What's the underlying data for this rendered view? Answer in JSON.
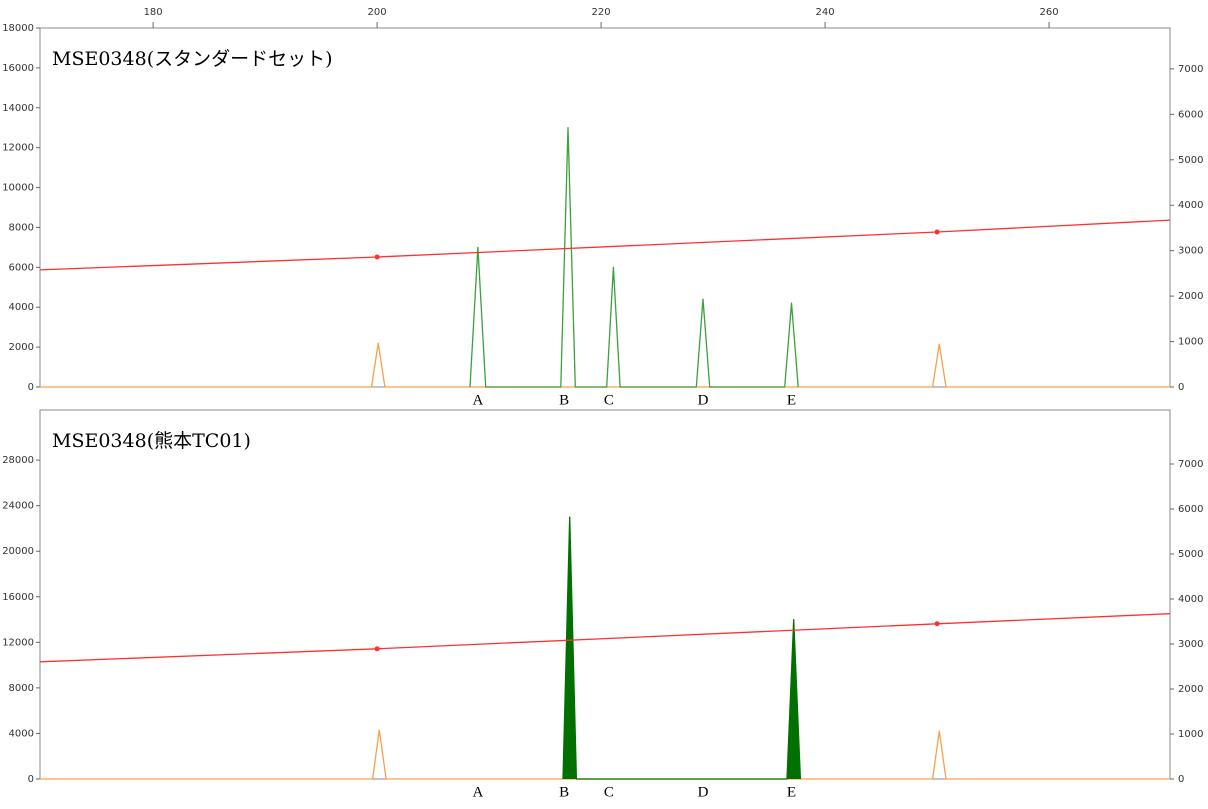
{
  "chart_data": [
    {
      "type": "line",
      "title": "MSE0348(スタンダードセット)",
      "xlim": [
        169.9,
        270.8
      ],
      "xticks": [
        180,
        200,
        220,
        240,
        260
      ],
      "ylim": [
        0,
        18000
      ],
      "yticks": [
        0,
        2000,
        4000,
        6000,
        8000,
        10000,
        12000,
        14000,
        16000,
        18000
      ],
      "y2lim": [
        0,
        7900
      ],
      "y2ticks": [
        0,
        1000,
        2000,
        3000,
        4000,
        5000,
        6000,
        7000
      ],
      "series": [
        {
          "color": "#f5a04a",
          "x": [
            169.9,
            199.5,
            200.1,
            200.7,
            249.6,
            250.2,
            250.8,
            270.8
          ],
          "values": [
            0,
            0,
            2200,
            0,
            0,
            2150,
            0,
            0
          ]
        },
        {
          "color": "#3ca03c",
          "x": [
            208.3,
            209.0,
            209.7,
            216.4,
            217.05,
            217.7,
            220.5,
            221.1,
            221.7,
            228.5,
            229.1,
            229.7,
            236.4,
            237.0,
            237.6
          ],
          "values": [
            0,
            7000,
            0,
            0,
            13000,
            0,
            0,
            6000,
            0,
            0,
            4400,
            0,
            0,
            4200,
            0
          ]
        },
        {
          "color": "#ff3030",
          "x": [
            169.9,
            200,
            250,
            270.8
          ],
          "values": [
            5870,
            6520,
            7770,
            8370
          ]
        },
        {
          "color": "#ff3030",
          "line": false,
          "x": [
            200,
            250
          ],
          "values": [
            6520,
            7770
          ]
        }
      ],
      "annotations": [
        {
          "text": "A",
          "x": 209.0
        },
        {
          "text": "B",
          "x": 216.7
        },
        {
          "text": "C",
          "x": 220.7
        },
        {
          "text": "D",
          "x": 229.1
        },
        {
          "text": "E",
          "x": 237.0
        }
      ]
    },
    {
      "type": "line",
      "title": "MSE0348(熊本TC01)",
      "xlim": [
        169.9,
        270.8
      ],
      "ylim": [
        0,
        32400
      ],
      "yticks": [
        0,
        4000,
        8000,
        12000,
        16000,
        20000,
        24000,
        28000
      ],
      "y2lim": [
        0,
        8200
      ],
      "y2ticks": [
        0,
        1000,
        2000,
        3000,
        4000,
        5000,
        6000,
        7000
      ],
      "series": [
        {
          "color": "#f5a04a",
          "x": [
            169.9,
            199.6,
            200.2,
            200.8,
            249.6,
            250.2,
            250.8,
            270.8
          ],
          "values": [
            0,
            0,
            4300,
            0,
            0,
            4200,
            0,
            0
          ]
        },
        {
          "color": "#007000",
          "fill": true,
          "x": [
            216.6,
            217.2,
            217.8,
            236.6,
            237.2,
            237.8
          ],
          "values": [
            0,
            23000,
            0,
            0,
            14000,
            0
          ]
        },
        {
          "color": "#ff3030",
          "x": [
            169.9,
            200,
            250,
            270.8
          ],
          "values": [
            10290,
            11430,
            13630,
            14510
          ]
        },
        {
          "color": "#ff3030",
          "line": false,
          "x": [
            200,
            250
          ],
          "values": [
            11430,
            13630
          ]
        }
      ],
      "annotations": [
        {
          "text": "A",
          "x": 209.0
        },
        {
          "text": "B",
          "x": 216.7
        },
        {
          "text": "C",
          "x": 220.7
        },
        {
          "text": "D",
          "x": 229.1
        },
        {
          "text": "E",
          "x": 237.0
        }
      ]
    }
  ]
}
